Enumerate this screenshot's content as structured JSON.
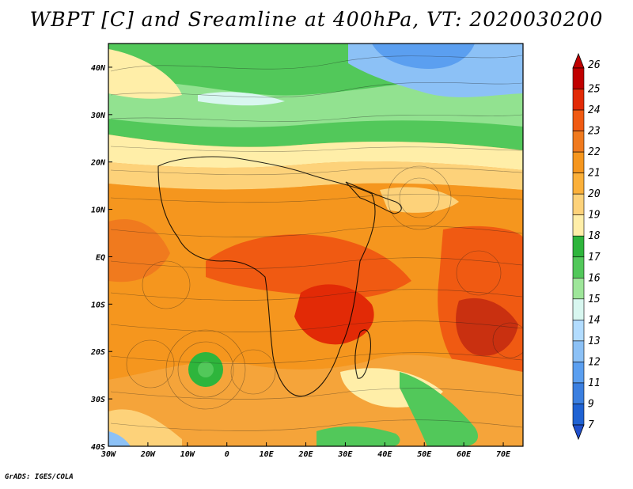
{
  "title": "WBPT [C] and Sreamline at 400hPa, VT: 2020030200",
  "footer": "GrADS: IGES/COLA",
  "map": {
    "lon_range": [
      -30,
      75
    ],
    "lat_range": [
      -40,
      45
    ],
    "lon_ticks": [
      {
        "value": -30,
        "label": "30W"
      },
      {
        "value": -20,
        "label": "20W"
      },
      {
        "value": -10,
        "label": "10W"
      },
      {
        "value": 0,
        "label": "0"
      },
      {
        "value": 10,
        "label": "10E"
      },
      {
        "value": 20,
        "label": "20E"
      },
      {
        "value": 30,
        "label": "30E"
      },
      {
        "value": 40,
        "label": "40E"
      },
      {
        "value": 50,
        "label": "50E"
      },
      {
        "value": 60,
        "label": "60E"
      },
      {
        "value": 70,
        "label": "70E"
      }
    ],
    "lat_ticks": [
      {
        "value": 40,
        "label": "40N"
      },
      {
        "value": 30,
        "label": "30N"
      },
      {
        "value": 20,
        "label": "20N"
      },
      {
        "value": 10,
        "label": "10N"
      },
      {
        "value": 0,
        "label": "EQ"
      },
      {
        "value": -10,
        "label": "10S"
      },
      {
        "value": -20,
        "label": "20S"
      },
      {
        "value": -30,
        "label": "30S"
      },
      {
        "value": -40,
        "label": "40S"
      }
    ]
  },
  "colorbar": {
    "levels": [
      "26",
      "25",
      "24",
      "23",
      "22",
      "21",
      "20",
      "19",
      "18",
      "17",
      "16",
      "15",
      "14",
      "13",
      "12",
      "11",
      "9",
      "7"
    ],
    "colors": [
      "#c00000",
      "#e22a06",
      "#f05a12",
      "#f07a1e",
      "#f5961e",
      "#fbb03a",
      "#fdd27a",
      "#ffeea8",
      "#2eb53c",
      "#52c85a",
      "#9ee69a",
      "#d8f7f0",
      "#b2dcff",
      "#8cc1f6",
      "#5b9ff0",
      "#3b7fe0",
      "#1f62d3",
      "#1f4fcc"
    ]
  },
  "regions": [
    {
      "name": "north-green-band",
      "color": "#52c85a"
    },
    {
      "name": "north-blue-cold-patch",
      "color": "#8cc1f6"
    },
    {
      "name": "subtropic-yellow-band",
      "color": "#ffeea8"
    },
    {
      "name": "central-orange-field",
      "color": "#f5961e"
    },
    {
      "name": "equatorial-red-core",
      "color": "#f05a12"
    },
    {
      "name": "indian-ocean-red-core",
      "color": "#e22a06"
    },
    {
      "name": "atlantic-green-eddy",
      "color": "#2eb53c"
    },
    {
      "name": "south-green-patch",
      "color": "#52c85a"
    }
  ]
}
